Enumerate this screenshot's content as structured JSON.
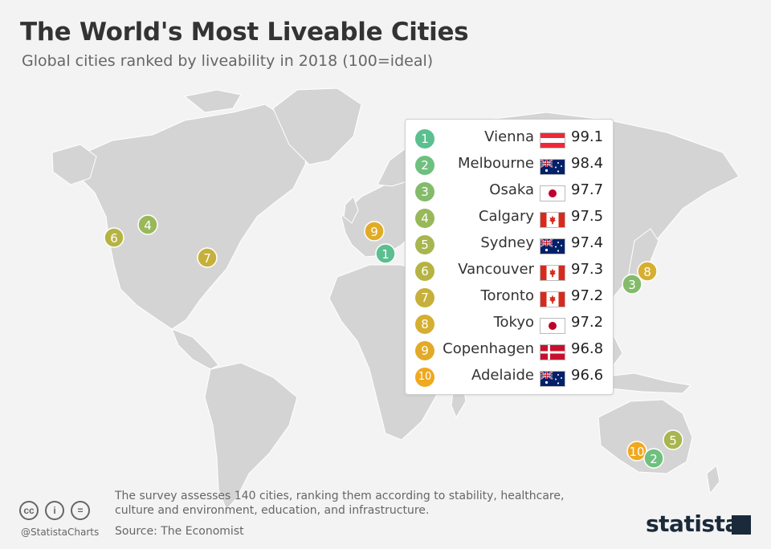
{
  "header": {
    "title": "The World's Most Liveable Cities",
    "subtitle": "Global cities ranked by liveability in 2018 (100=ideal)"
  },
  "chart_data": {
    "type": "table",
    "title": "The World's Most Liveable Cities",
    "subtitle": "Global cities ranked by liveability in 2018 (100=ideal)",
    "rows": [
      {
        "rank": "1",
        "city": "Vienna",
        "country": "Austria",
        "flag": "austria-flag",
        "score": "99.1",
        "color": "#5bbf8f"
      },
      {
        "rank": "2",
        "city": "Melbourne",
        "country": "Australia",
        "flag": "australia-flag",
        "score": "98.4",
        "color": "#6fc07f"
      },
      {
        "rank": "3",
        "city": "Osaka",
        "country": "Japan",
        "flag": "japan-flag",
        "score": "97.7",
        "color": "#84bb6b"
      },
      {
        "rank": "4",
        "city": "Calgary",
        "country": "Canada",
        "flag": "canada-flag",
        "score": "97.5",
        "color": "#98b85a"
      },
      {
        "rank": "5",
        "city": "Sydney",
        "country": "Australia",
        "flag": "australia-flag",
        "score": "97.4",
        "color": "#a8b64f"
      },
      {
        "rank": "6",
        "city": "Vancouver",
        "country": "Canada",
        "flag": "canada-flag",
        "score": "97.3",
        "color": "#b5b443"
      },
      {
        "rank": "7",
        "city": "Toronto",
        "country": "Canada",
        "flag": "canada-flag",
        "score": "97.2",
        "color": "#c7b03a"
      },
      {
        "rank": "8",
        "city": "Tokyo",
        "country": "Japan",
        "flag": "japan-flag",
        "score": "97.2",
        "color": "#d6ae30"
      },
      {
        "rank": "9",
        "city": "Copenhagen",
        "country": "Denmark",
        "flag": "denmark-flag",
        "score": "96.8",
        "color": "#e2ab27"
      },
      {
        "rank": "10",
        "city": "Adelaide",
        "country": "Australia",
        "flag": "australia-flag",
        "score": "96.6",
        "color": "#f0a81e"
      }
    ]
  },
  "footer": {
    "note": "The survey assesses 140 cities,  ranking them according to stability, healthcare, culture and environment, education, and infrastructure.",
    "source": "Source: The Economist",
    "handle": "@StatistaCharts",
    "brand": "statista",
    "license_icons": [
      "cc-icon",
      "attribution-icon",
      "no-derivatives-icon"
    ]
  }
}
